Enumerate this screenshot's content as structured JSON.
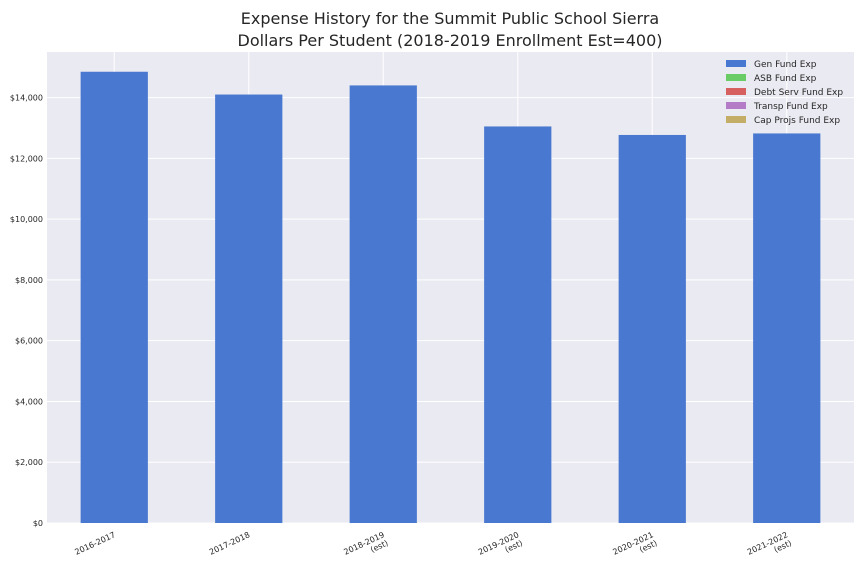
{
  "chart_data": {
    "type": "bar",
    "title": "Expense History for the Summit Public School Sierra",
    "subtitle": "Dollars Per Student (2018-2019 Enrollment Est=400)",
    "xlabel": "",
    "ylabel": "",
    "categories": [
      [
        "2016-2017"
      ],
      [
        "2017-2018"
      ],
      [
        "2018-2019",
        "(est)"
      ],
      [
        "2019-2020",
        "(est)"
      ],
      [
        "2020-2021",
        "(est)"
      ],
      [
        "2021-2022",
        "(est)"
      ]
    ],
    "series": [
      {
        "name": "Gen Fund Exp",
        "color": "#4878cf",
        "values": [
          14850,
          14100,
          14400,
          13050,
          12770,
          12820
        ]
      },
      {
        "name": "ASB Fund Exp",
        "color": "#6acc65",
        "values": [
          0,
          0,
          0,
          0,
          0,
          0
        ]
      },
      {
        "name": "Debt Serv Fund Exp",
        "color": "#d65f5f",
        "values": [
          0,
          0,
          0,
          0,
          0,
          0
        ]
      },
      {
        "name": "Transp Fund Exp",
        "color": "#b47cc7",
        "values": [
          0,
          0,
          0,
          0,
          0,
          0
        ]
      },
      {
        "name": "Cap Projs Fund Exp",
        "color": "#c4ad66",
        "values": [
          0,
          0,
          0,
          0,
          0,
          0
        ]
      }
    ],
    "ylim": [
      0,
      15500
    ],
    "yticks": [
      0,
      2000,
      4000,
      6000,
      8000,
      10000,
      12000,
      14000
    ],
    "ytick_labels": [
      "$0",
      "$2,000",
      "$4,000",
      "$6,000",
      "$8,000",
      "$10,000",
      "$12,000",
      "$14,000"
    ],
    "grid": true,
    "legend_position": "top-right",
    "background_color": "#eaeaf2",
    "stacked": true
  }
}
